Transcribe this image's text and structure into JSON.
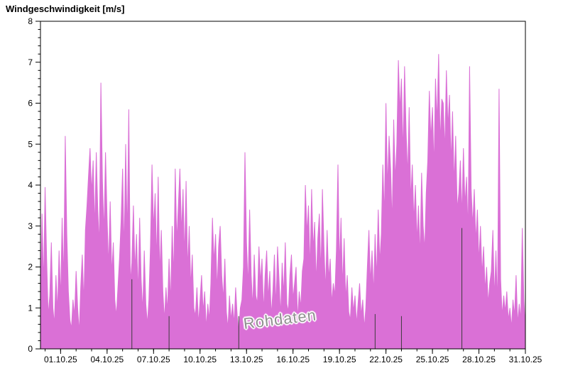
{
  "page": {
    "title": "Windgeschwindigkeit [m/s]"
  },
  "chart_data": {
    "type": "area",
    "title": "Windgeschwindigkeit [m/s]",
    "ylabel": "Windgeschwindigkeit [m/s]",
    "annotation": "Rohdaten",
    "ylim": [
      0,
      8
    ],
    "y_major_step": 1,
    "y_minor_step": 0.2,
    "y_tick_labels": [
      "0",
      "1",
      "2",
      "3",
      "4",
      "5",
      "6",
      "7",
      "8"
    ],
    "x_range_days": [
      -1.3,
      30
    ],
    "x_minor_step_days": 1,
    "x_major_ticks": [
      {
        "day": 0,
        "label": "01.10.25"
      },
      {
        "day": 3,
        "label": "04.10.25"
      },
      {
        "day": 6,
        "label": "07.10.25"
      },
      {
        "day": 9,
        "label": "10.10.25"
      },
      {
        "day": 12,
        "label": "13.10.25"
      },
      {
        "day": 15,
        "label": "16.10.25"
      },
      {
        "day": 18,
        "label": "19.10.25"
      },
      {
        "day": 21,
        "label": "22.10.25"
      },
      {
        "day": 24,
        "label": "25.10.25"
      },
      {
        "day": 27,
        "label": "28.10.25"
      },
      {
        "day": 30,
        "label": "31.10.25"
      }
    ],
    "series_color": "#da70d6",
    "axis_color": "#000000",
    "grid": false,
    "legend": false,
    "values": [
      0.9,
      3.3,
      1.5,
      3.95,
      2.2,
      0.8,
      1.3,
      2.6,
      1.0,
      0.6,
      1.8,
      0.9,
      2.4,
      1.2,
      3.2,
      1.6,
      5.2,
      2.8,
      1.4,
      0.7,
      0.5,
      1.2,
      0.8,
      1.9,
      1.0,
      0.4,
      1.5,
      2.3,
      1.1,
      2.9,
      3.5,
      4.2,
      4.9,
      3.8,
      4.6,
      2.9,
      4.8,
      3.4,
      2.5,
      6.5,
      4.1,
      2.8,
      4.8,
      3.2,
      2.0,
      3.6,
      1.8,
      2.6,
      1.2,
      0.8,
      1.5,
      2.2,
      3.1,
      4.4,
      2.3,
      5.0,
      2.7,
      5.85,
      1.6,
      2.1,
      3.5,
      1.9,
      2.8,
      1.3,
      3.2,
      1.7,
      0.9,
      2.4,
      1.1,
      0.6,
      1.2,
      2.5,
      4.5,
      2.9,
      3.8,
      2.1,
      4.2,
      1.8,
      2.9,
      1.4,
      0.7,
      1.5,
      0.9,
      2.2,
      1.1,
      3.0,
      1.7,
      4.4,
      2.6,
      3.5,
      4.4,
      2.8,
      3.9,
      2.2,
      4.1,
      1.9,
      3.0,
      1.5,
      2.3,
      1.0,
      0.8,
      1.5,
      0.6,
      1.2,
      1.8,
      0.9,
      1.4,
      0.5,
      1.1,
      0.7,
      1.6,
      3.2,
      2.1,
      2.8,
      1.4,
      2.5,
      3.0,
      1.8,
      1.2,
      2.2,
      0.9,
      0.5,
      1.3,
      0.7,
      1.1,
      0.6,
      1.5,
      0.8,
      0.4,
      1.0,
      1.2,
      2.0,
      4.8,
      2.6,
      1.5,
      3.4,
      1.8,
      1.0,
      2.3,
      1.3,
      1.1,
      2.5,
      1.6,
      2.2,
      0.9,
      1.8,
      2.4,
      1.2,
      1.9,
      0.8,
      1.4,
      2.3,
      1.0,
      2.5,
      1.7,
      0.8,
      2.1,
      1.3,
      2.6,
      1.1,
      0.9,
      1.8,
      2.3,
      1.2,
      1.6,
      2.0,
      0.7,
      1.4,
      1.0,
      1.9,
      2.2,
      4.0,
      2.8,
      3.5,
      1.9,
      3.9,
      2.4,
      3.1,
      1.6,
      2.7,
      3.3,
      1.8,
      3.9,
      2.5,
      1.4,
      2.9,
      1.7,
      2.2,
      1.1,
      1.6,
      1.3,
      2.4,
      4.5,
      2.0,
      3.2,
      1.5,
      2.7,
      1.2,
      1.8,
      0.9,
      0.7,
      1.5,
      0.9,
      1.3,
      0.6,
      1.1,
      1.6,
      0.8,
      1.2,
      0.5,
      1.0,
      2.0,
      2.9,
      1.6,
      2.4,
      1.3,
      2.8,
      1.7,
      3.4,
      2.1,
      2.8,
      4.5,
      3.2,
      6.0,
      3.9,
      5.2,
      4.4,
      3.0,
      5.6,
      4.1,
      5.0,
      7.05,
      5.8,
      6.6,
      4.7,
      6.9,
      5.3,
      4.2,
      5.9,
      3.6,
      4.5,
      3.1,
      4.0,
      2.6,
      3.5,
      2.2,
      4.3,
      3.0,
      2.4,
      3.8,
      4.6,
      6.3,
      5.1,
      5.9,
      4.4,
      6.6,
      5.5,
      7.2,
      5.0,
      6.1,
      6.0,
      4.8,
      6.8,
      5.4,
      6.2,
      4.5,
      5.8,
      4.0,
      5.2,
      3.4,
      3.8,
      4.6,
      3.2,
      4.9,
      3.5,
      4.2,
      2.8,
      6.9,
      3.9,
      3.0,
      3.9,
      2.6,
      3.4,
      2.1,
      3.0,
      1.8,
      2.5,
      1.4,
      2.0,
      1.1,
      1.6,
      1.9,
      2.9,
      1.2,
      2.4,
      1.0,
      6.35,
      1.7,
      0.8,
      1.3,
      0.9,
      1.4,
      0.7,
      1.0,
      0.5,
      1.2,
      0.8,
      1.8,
      0.6,
      1.1,
      0.7,
      2.95,
      1.2,
      0.5
    ],
    "dark_lines": [
      {
        "day": 4.6,
        "value": 1.7
      },
      {
        "day": 7.0,
        "value": 0.8
      },
      {
        "day": 11.5,
        "value": 0.8
      },
      {
        "day": 20.3,
        "value": 0.85
      },
      {
        "day": 22.0,
        "value": 0.8
      },
      {
        "day": 25.9,
        "value": 2.95
      }
    ]
  }
}
